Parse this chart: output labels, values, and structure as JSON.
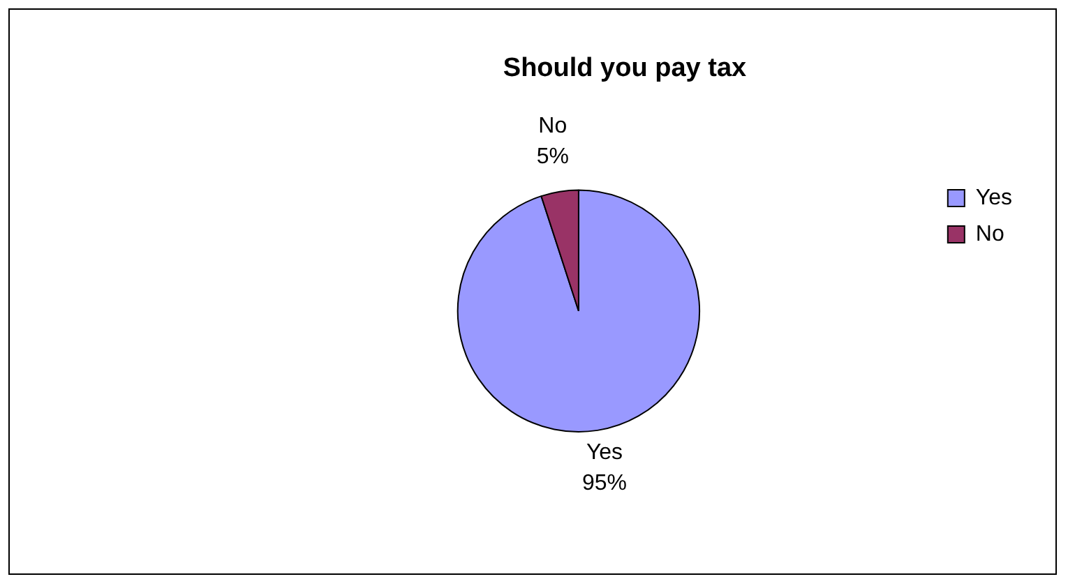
{
  "chart_data": {
    "type": "pie",
    "title": "Should you pay tax",
    "categories": [
      "Yes",
      "No"
    ],
    "values": [
      95,
      5
    ],
    "colors": [
      "#9999ff",
      "#993366"
    ],
    "value_labels": [
      "95%",
      "5%"
    ],
    "legend": "right"
  }
}
